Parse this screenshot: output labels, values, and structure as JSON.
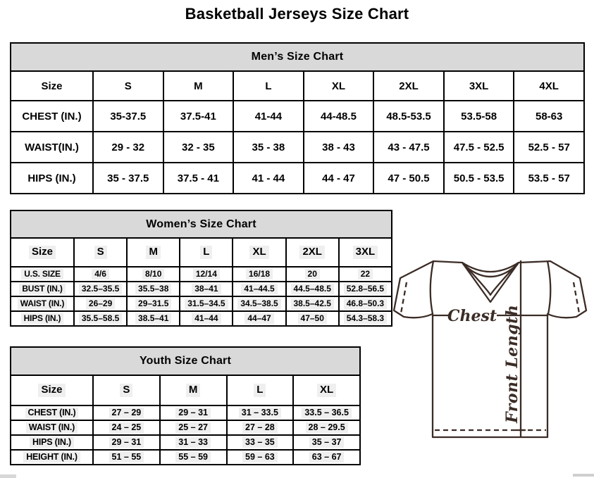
{
  "page_title": "Basketball Jerseys Size Chart",
  "tables": [
    {
      "id": "mens",
      "title": "Men’s Size Chart",
      "shaded": false,
      "columns": [
        "Size",
        "S",
        "M",
        "L",
        "XL",
        "2XL",
        "3XL",
        "4XL"
      ],
      "rows": [
        {
          "label": "CHEST (IN.)",
          "values": [
            "35-37.5",
            "37.5-41",
            "41-44",
            "44-48.5",
            "48.5-53.5",
            "53.5-58",
            "58-63"
          ]
        },
        {
          "label": "WAIST(IN.)",
          "values": [
            "29 - 32",
            "32 - 35",
            "35 - 38",
            "38 - 43",
            "43 - 47.5",
            "47.5 - 52.5",
            "52.5 - 57"
          ]
        },
        {
          "label": "HIPS (IN.)",
          "values": [
            "35 - 37.5",
            "37.5 - 41",
            "41 - 44",
            "44 - 47",
            "47 - 50.5",
            "50.5 - 53.5",
            "53.5 - 57"
          ]
        }
      ]
    },
    {
      "id": "womens",
      "title": "Women’s Size Chart",
      "shaded": true,
      "columns": [
        "Size",
        "S",
        "M",
        "L",
        "XL",
        "2XL",
        "3XL"
      ],
      "rows": [
        {
          "label": "U.S. SIZE",
          "values": [
            "4/6",
            "8/10",
            "12/14",
            "16/18",
            "20",
            "22"
          ]
        },
        {
          "label": "BUST (IN.)",
          "values": [
            "32.5–35.5",
            "35.5–38",
            "38–41",
            "41–44.5",
            "44.5–48.5",
            "52.8–56.5"
          ]
        },
        {
          "label": "WAIST (IN.)",
          "values": [
            "26–29",
            "29–31.5",
            "31.5–34.5",
            "34.5–38.5",
            "38.5–42.5",
            "46.8–50.3"
          ]
        },
        {
          "label": "HIPS (IN.)",
          "values": [
            "35.5–58.5",
            "38.5–41",
            "41–44",
            "44–47",
            "47–50",
            "54.3–58.3"
          ]
        }
      ]
    },
    {
      "id": "youth",
      "title": "Youth Size Chart",
      "shaded": true,
      "columns": [
        "Size",
        "S",
        "M",
        "L",
        "XL"
      ],
      "rows": [
        {
          "label": "CHEST (IN.)",
          "values": [
            "27 – 29",
            "29 – 31",
            "31 – 33.5",
            "33.5 – 36.5"
          ]
        },
        {
          "label": "WAIST (IN.)",
          "values": [
            "24 – 25",
            "25 – 27",
            "27 – 28",
            "28 – 29.5"
          ]
        },
        {
          "label": "HIPS (IN.)",
          "values": [
            "29 – 31",
            "31 – 33",
            "33 – 35",
            "35 – 37"
          ]
        },
        {
          "label": "HEIGHT (IN.)",
          "values": [
            "51 – 55",
            "55 – 59",
            "59 – 63",
            "63 – 67"
          ]
        }
      ]
    }
  ],
  "diagram": {
    "chest_label": "Chest",
    "front_length_label": "Front Length"
  },
  "colors": {
    "header_bg": "#d9d9d9",
    "field_shading": "#efefef",
    "border": "#000000",
    "line_color": "#3b2c26"
  }
}
